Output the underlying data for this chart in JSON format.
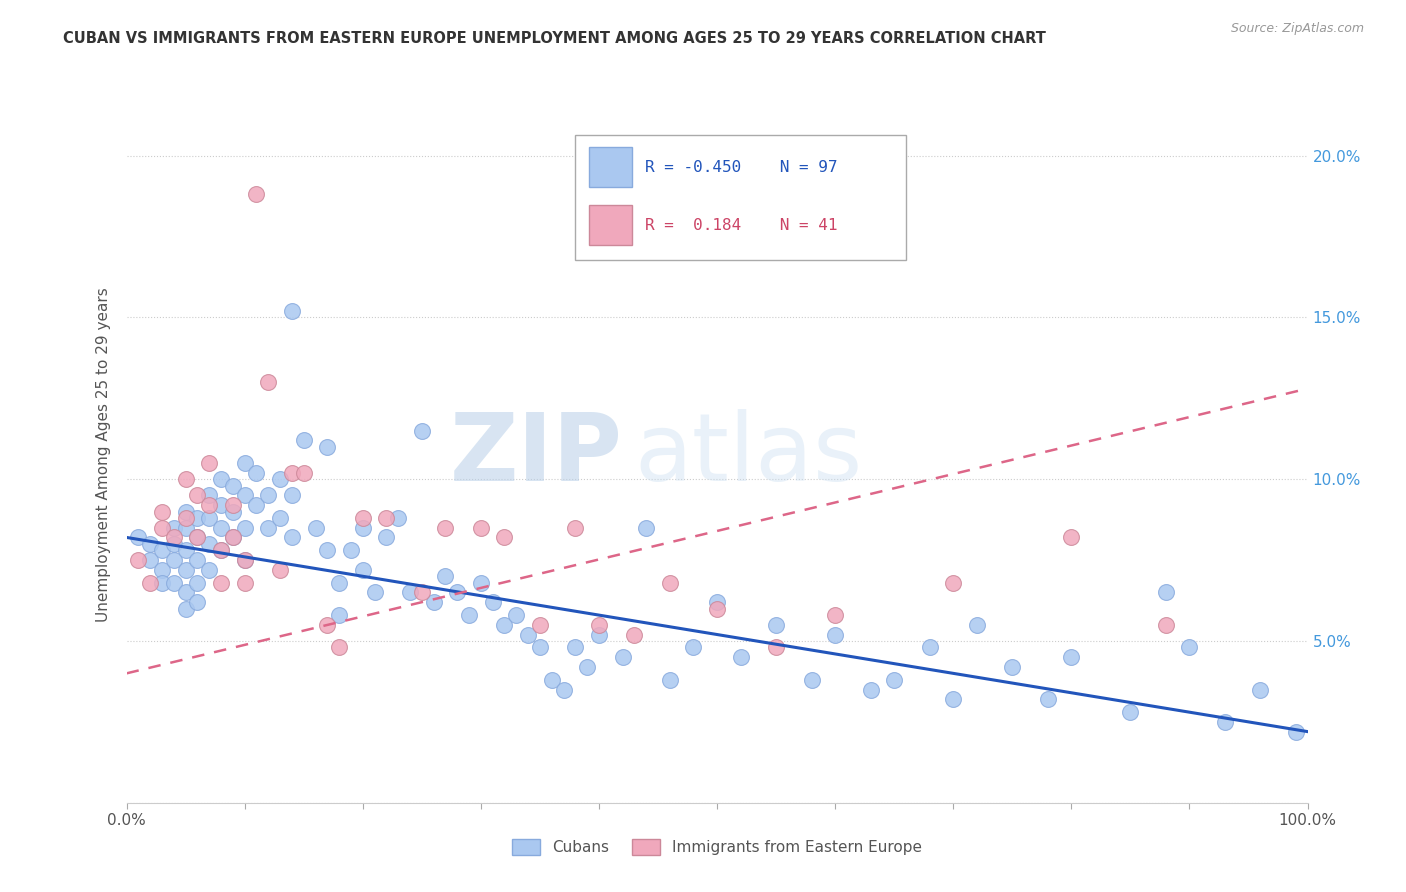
{
  "title": "CUBAN VS IMMIGRANTS FROM EASTERN EUROPE UNEMPLOYMENT AMONG AGES 25 TO 29 YEARS CORRELATION CHART",
  "source": "Source: ZipAtlas.com",
  "ylabel": "Unemployment Among Ages 25 to 29 years",
  "yticks": [
    "",
    "5.0%",
    "10.0%",
    "15.0%",
    "20.0%"
  ],
  "ytick_vals": [
    0,
    0.05,
    0.1,
    0.15,
    0.2
  ],
  "xlim": [
    0.0,
    1.0
  ],
  "ylim": [
    0.0,
    0.215
  ],
  "cubans_R": -0.45,
  "cubans_N": 97,
  "eastern_europe_R": 0.184,
  "eastern_europe_N": 41,
  "cubans_color": "#aac8f0",
  "eastern_europe_color": "#f0a8bc",
  "cubans_line_color": "#2255bb",
  "eastern_europe_line_color": "#dd6688",
  "watermark_zip": "ZIP",
  "watermark_atlas": "atlas",
  "watermark_color": "#c5d8ee",
  "right_yaxis_color": "#4499dd",
  "cubans_line_x0": 0.0,
  "cubans_line_y0": 0.082,
  "cubans_line_x1": 1.0,
  "cubans_line_y1": 0.022,
  "eastern_line_x0": 0.0,
  "eastern_line_y0": 0.04,
  "eastern_line_x1": 1.0,
  "eastern_line_y1": 0.128,
  "cubans_scatter_x": [
    0.01,
    0.02,
    0.02,
    0.03,
    0.03,
    0.03,
    0.04,
    0.04,
    0.04,
    0.04,
    0.05,
    0.05,
    0.05,
    0.05,
    0.05,
    0.05,
    0.06,
    0.06,
    0.06,
    0.06,
    0.06,
    0.07,
    0.07,
    0.07,
    0.07,
    0.08,
    0.08,
    0.08,
    0.08,
    0.09,
    0.09,
    0.09,
    0.1,
    0.1,
    0.1,
    0.1,
    0.11,
    0.11,
    0.12,
    0.12,
    0.13,
    0.13,
    0.14,
    0.14,
    0.14,
    0.15,
    0.16,
    0.17,
    0.17,
    0.18,
    0.18,
    0.19,
    0.2,
    0.2,
    0.21,
    0.22,
    0.23,
    0.24,
    0.25,
    0.26,
    0.27,
    0.28,
    0.29,
    0.3,
    0.31,
    0.32,
    0.33,
    0.34,
    0.35,
    0.36,
    0.37,
    0.38,
    0.39,
    0.4,
    0.42,
    0.44,
    0.46,
    0.48,
    0.5,
    0.52,
    0.55,
    0.58,
    0.6,
    0.63,
    0.65,
    0.68,
    0.7,
    0.72,
    0.75,
    0.78,
    0.8,
    0.85,
    0.88,
    0.9,
    0.93,
    0.96,
    0.99
  ],
  "cubans_scatter_y": [
    0.082,
    0.08,
    0.075,
    0.078,
    0.072,
    0.068,
    0.085,
    0.08,
    0.075,
    0.068,
    0.09,
    0.085,
    0.078,
    0.072,
    0.065,
    0.06,
    0.088,
    0.082,
    0.075,
    0.068,
    0.062,
    0.095,
    0.088,
    0.08,
    0.072,
    0.1,
    0.092,
    0.085,
    0.078,
    0.098,
    0.09,
    0.082,
    0.105,
    0.095,
    0.085,
    0.075,
    0.102,
    0.092,
    0.095,
    0.085,
    0.1,
    0.088,
    0.152,
    0.095,
    0.082,
    0.112,
    0.085,
    0.11,
    0.078,
    0.068,
    0.058,
    0.078,
    0.085,
    0.072,
    0.065,
    0.082,
    0.088,
    0.065,
    0.115,
    0.062,
    0.07,
    0.065,
    0.058,
    0.068,
    0.062,
    0.055,
    0.058,
    0.052,
    0.048,
    0.038,
    0.035,
    0.048,
    0.042,
    0.052,
    0.045,
    0.085,
    0.038,
    0.048,
    0.062,
    0.045,
    0.055,
    0.038,
    0.052,
    0.035,
    0.038,
    0.048,
    0.032,
    0.055,
    0.042,
    0.032,
    0.045,
    0.028,
    0.065,
    0.048,
    0.025,
    0.035,
    0.022
  ],
  "eastern_scatter_x": [
    0.01,
    0.02,
    0.03,
    0.03,
    0.04,
    0.05,
    0.05,
    0.06,
    0.06,
    0.07,
    0.07,
    0.08,
    0.08,
    0.09,
    0.09,
    0.1,
    0.1,
    0.11,
    0.12,
    0.13,
    0.14,
    0.15,
    0.17,
    0.18,
    0.2,
    0.22,
    0.25,
    0.27,
    0.3,
    0.32,
    0.35,
    0.38,
    0.4,
    0.43,
    0.46,
    0.5,
    0.55,
    0.6,
    0.7,
    0.8,
    0.88
  ],
  "eastern_scatter_y": [
    0.075,
    0.068,
    0.09,
    0.085,
    0.082,
    0.1,
    0.088,
    0.095,
    0.082,
    0.105,
    0.092,
    0.078,
    0.068,
    0.092,
    0.082,
    0.075,
    0.068,
    0.188,
    0.13,
    0.072,
    0.102,
    0.102,
    0.055,
    0.048,
    0.088,
    0.088,
    0.065,
    0.085,
    0.085,
    0.082,
    0.055,
    0.085,
    0.055,
    0.052,
    0.068,
    0.06,
    0.048,
    0.058,
    0.068,
    0.082,
    0.055
  ]
}
